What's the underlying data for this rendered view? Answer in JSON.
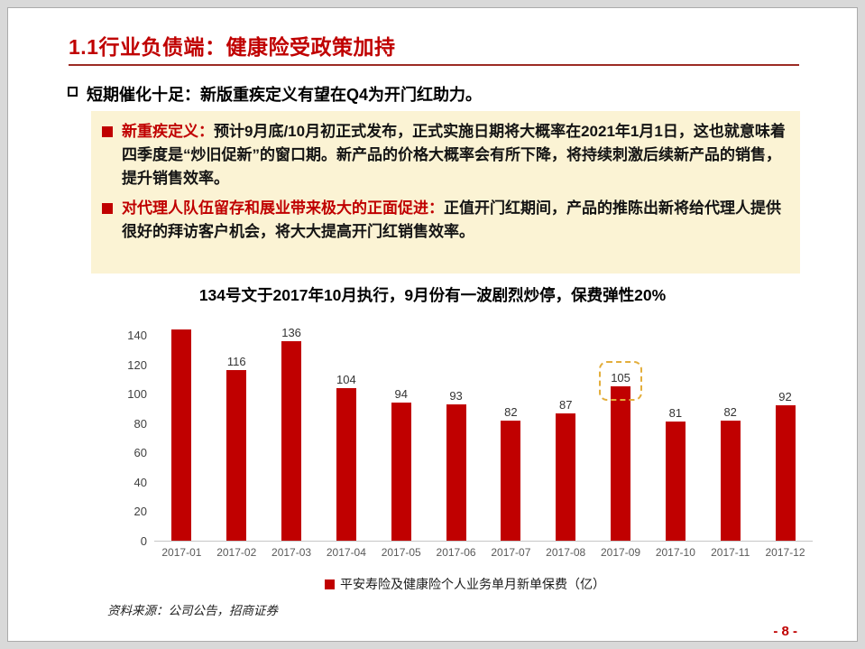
{
  "page": {
    "title": "1.1行业负债端：健康险受政策加持",
    "page_number": "- 8 -",
    "source": "资料来源：公司公告，招商证券"
  },
  "headline": {
    "text": "短期催化十足：新版重疾定义有望在Q4为开门红助力。"
  },
  "callout_box": {
    "bg_color": "#FBF3D4",
    "items": [
      {
        "lead": "新重疾定义：",
        "body": "预计9月底/10月初正式发布，正式实施日期将大概率在2021年1月1日，这也就意味着四季度是“炒旧促新”的窗口期。新产品的价格大概率会有所下降，将持续刺激后续新产品的销售，提升销售效率。"
      },
      {
        "lead": "对代理人队伍留存和展业带来极大的正面促进：",
        "body": "正值开门红期间，产品的推陈出新将给代理人提供很好的拜访客户机会，将大大提高开门红销售效率。"
      }
    ]
  },
  "chart_data": {
    "type": "bar",
    "title": "134号文于2017年10月执行，9月份有一波剧烈炒停，保费弹性20%",
    "categories": [
      "2017-01",
      "2017-02",
      "2017-03",
      "2017-04",
      "2017-05",
      "2017-06",
      "2017-07",
      "2017-08",
      "2017-09",
      "2017-10",
      "2017-11",
      "2017-12"
    ],
    "values": [
      151,
      116,
      136,
      104,
      94,
      93,
      82,
      87,
      105,
      81,
      82,
      92
    ],
    "data_labels": [
      "",
      "116",
      "136",
      "104",
      "94",
      "93",
      "82",
      "87",
      "105",
      "81",
      "82",
      "92"
    ],
    "highlight_index": 8,
    "y_ticks": [
      0,
      20,
      40,
      60,
      80,
      100,
      120,
      140
    ],
    "ylim": [
      0,
      155
    ],
    "grid": false,
    "legend": "平安寿险及健康险个人业务单月新单保费（亿）",
    "legend_position": "bottom",
    "bar_color": "#C00000",
    "highlight_color": "#E3AE3C",
    "xlabel": "",
    "ylabel": ""
  }
}
